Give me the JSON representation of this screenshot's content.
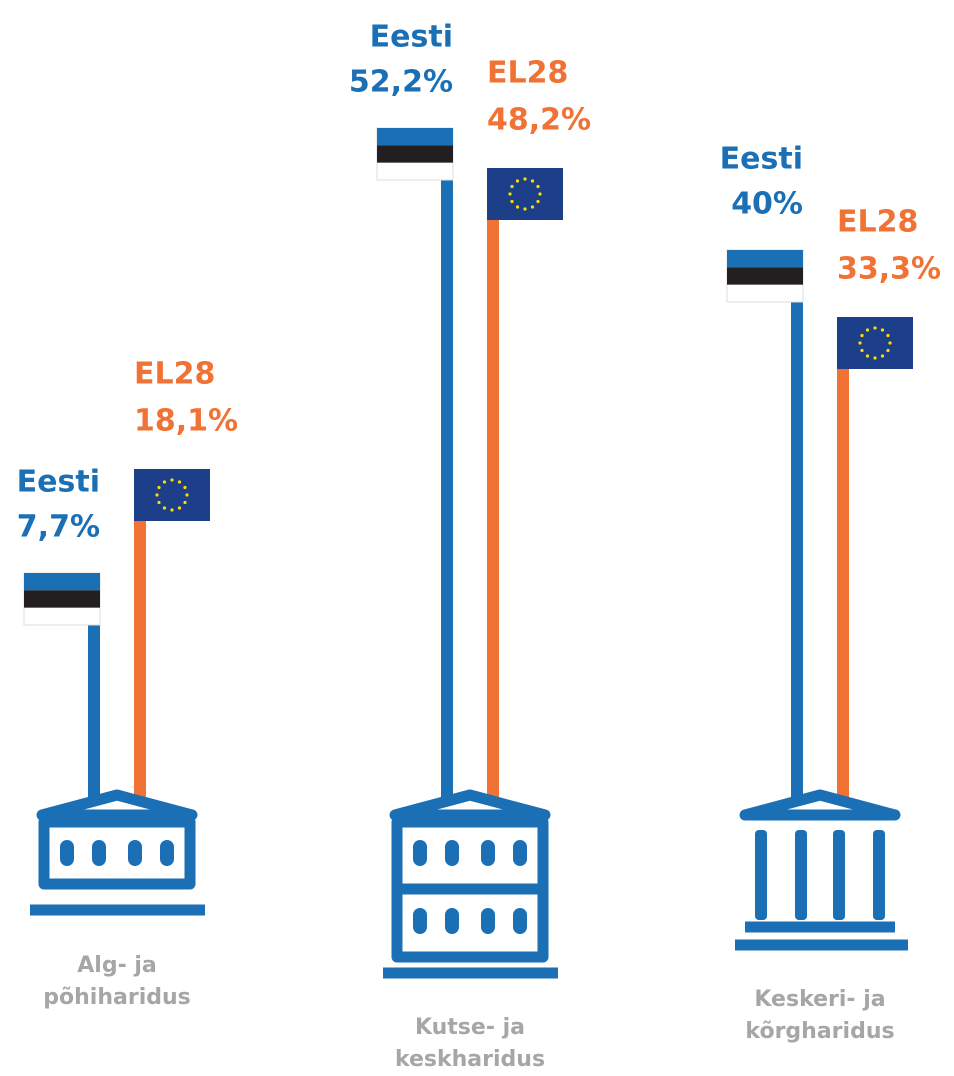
{
  "chart_data": {
    "type": "bar",
    "categories": [
      "Alg- ja põhiharidus",
      "Kutse- ja keskharidus",
      "Keskeri- ja kõrgharidus"
    ],
    "series": [
      {
        "name": "Eesti",
        "color": "#1a6fb5",
        "values": [
          7.7,
          52.2,
          40
        ],
        "value_labels": [
          "7,7%",
          "52,2%",
          "40%"
        ]
      },
      {
        "name": "EL28",
        "color": "#f07335",
        "values": [
          18.1,
          48.2,
          33.3
        ],
        "value_labels": [
          "18,1%",
          "48,2%",
          "33,3%"
        ]
      }
    ]
  }
}
